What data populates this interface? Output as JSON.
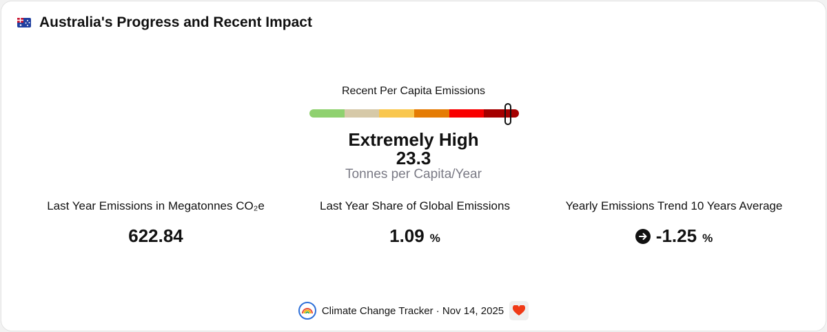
{
  "header": {
    "title": "Australia's Progress and Recent Impact"
  },
  "gauge": {
    "label": "Recent Per Capita Emissions",
    "segment_colors": [
      "#8fd16f",
      "#d6c9a8",
      "#f9c74f",
      "#e57c04",
      "#f90000",
      "#a50000"
    ],
    "rating": "Extremely High",
    "value": 23.3,
    "unit": "Tonnes per Capita/Year"
  },
  "stats": [
    {
      "label": "Last Year Emissions in Megatonnes CO₂e",
      "value": 622.84
    },
    {
      "label": "Last Year Share of Global Emissions",
      "value": 1.09,
      "unit": "%"
    },
    {
      "label": "Yearly Emissions Trend 10 Years Average",
      "value": -1.25,
      "unit": "%"
    }
  ],
  "footer": {
    "source": "Climate Change Tracker · Nov 14, 2025"
  }
}
